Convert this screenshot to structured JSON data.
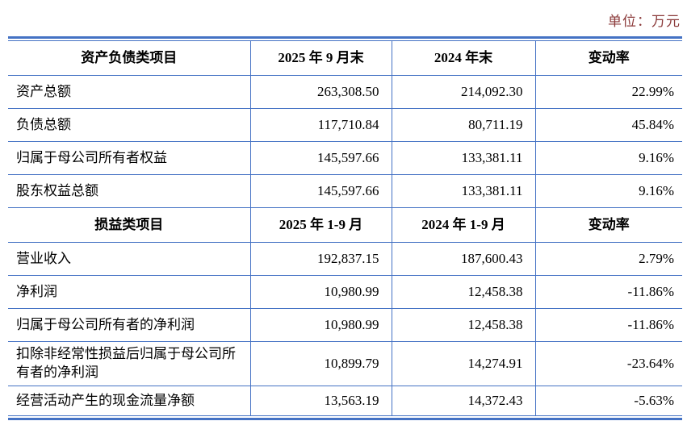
{
  "unit_label": "单位：万元",
  "colors": {
    "table_border": "#4472c4",
    "unit_text": "#8b3a3a",
    "body_text": "#000000"
  },
  "table": {
    "sections": [
      {
        "header": [
          "资产负债类项目",
          "2025 年 9 月末",
          "2024 年末",
          "变动率"
        ],
        "rows": [
          [
            "资产总额",
            "263,308.50",
            "214,092.30",
            "22.99%"
          ],
          [
            "负债总额",
            "117,710.84",
            "80,711.19",
            "45.84%"
          ],
          [
            "归属于母公司所有者权益",
            "145,597.66",
            "133,381.11",
            "9.16%"
          ],
          [
            "股东权益总额",
            "145,597.66",
            "133,381.11",
            "9.16%"
          ]
        ]
      },
      {
        "header": [
          "损益类项目",
          "2025 年 1-9 月",
          "2024 年 1-9 月",
          "变动率"
        ],
        "rows": [
          [
            "营业收入",
            "192,837.15",
            "187,600.43",
            "2.79%"
          ],
          [
            "净利润",
            "10,980.99",
            "12,458.38",
            "-11.86%"
          ],
          [
            "归属于母公司所有者的净利润",
            "10,980.99",
            "12,458.38",
            "-11.86%"
          ],
          [
            "扣除非经常性损益后归属于母公司所有者的净利润",
            "10,899.79",
            "14,274.91",
            "-23.64%"
          ],
          [
            "经营活动产生的现金流量净额",
            "13,563.19",
            "14,372.43",
            "-5.63%"
          ]
        ]
      }
    ]
  }
}
